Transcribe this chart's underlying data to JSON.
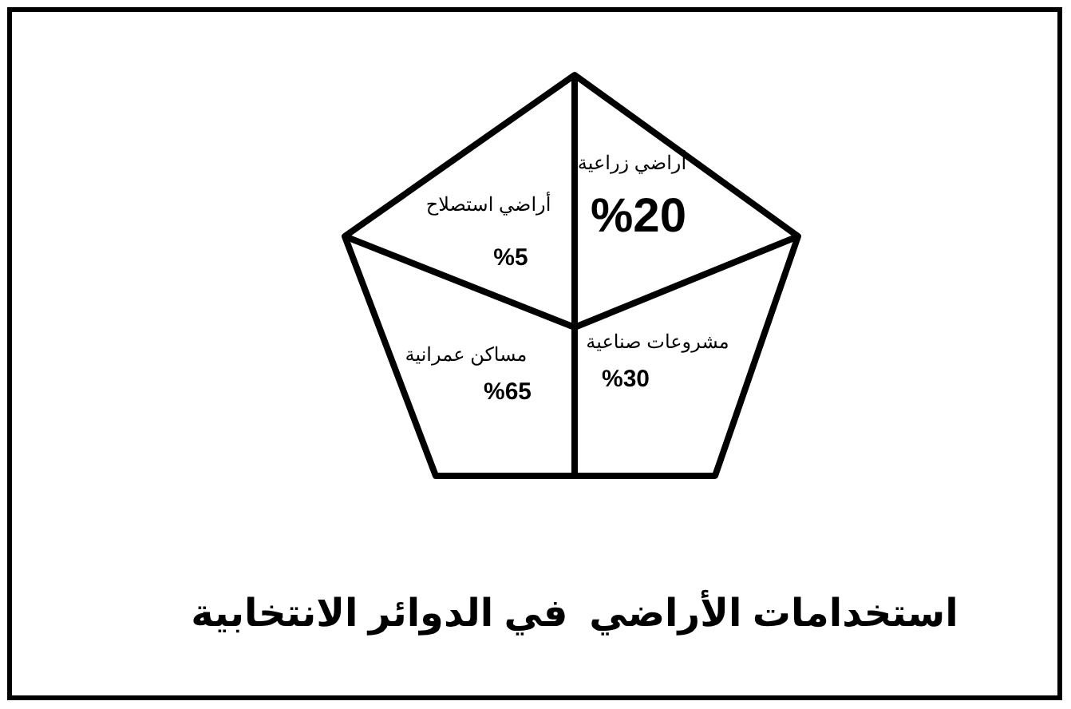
{
  "chart_data": {
    "type": "other",
    "title": "استخدامات الأراضي  في الدوائر الانتخابية",
    "categories": [
      "أراضي زراعية",
      "أراضي استصلاح",
      "مشروعات صناعية",
      "مساكن عمرانية"
    ],
    "values": [
      20,
      5,
      30,
      65
    ],
    "value_labels": [
      "%20",
      "%5",
      "%30",
      "%65"
    ]
  }
}
